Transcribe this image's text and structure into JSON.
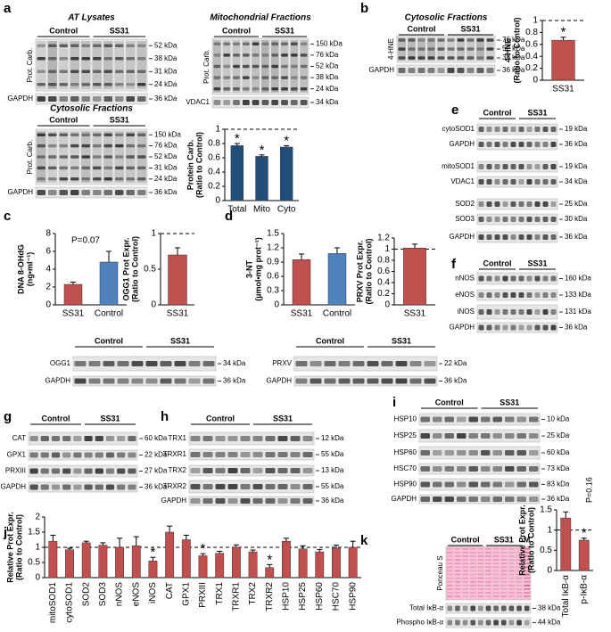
{
  "panel_labels": [
    "a",
    "b",
    "c",
    "d",
    "e",
    "f",
    "g",
    "h",
    "i",
    "j",
    "k"
  ],
  "blots": [
    {
      "title": "AT Lysates",
      "groups": [
        "Control",
        "SS31"
      ],
      "rows": [
        {
          "label": "Prot. Carb.",
          "markers": [
            "52 kDa",
            "38 kDa",
            "31 kDa",
            "24 kDa"
          ]
        },
        {
          "label": "GAPDH",
          "markers": [
            "36 kDa"
          ]
        }
      ]
    },
    {
      "title": "Mitochondrial Fractions",
      "groups": [
        "Control",
        "SS31"
      ],
      "rows": [
        {
          "label": "Prot. Carb.",
          "markers": [
            "150 kDa",
            "76 kDa",
            "52 kDa",
            "38 kDa",
            "24 kDa"
          ]
        },
        {
          "label": "VDAC1",
          "markers": [
            "34 kDa"
          ]
        }
      ]
    },
    {
      "title": "Cytosolic Fractions",
      "groups": [
        "Control",
        "SS31"
      ],
      "rows": [
        {
          "label": "Prot. Carb.",
          "markers": [
            "150 kDa",
            "76 kDa",
            "52 kDa",
            "31 kDa",
            "24 kDa"
          ]
        },
        {
          "label": "GAPDH",
          "markers": [
            "36 kDa"
          ]
        }
      ]
    },
    {
      "title": "Cytosolic Fractions",
      "groups": [
        "Control",
        "SS31"
      ],
      "rows": [
        {
          "label": "4-HNE",
          "markers": [
            "76 kDa",
            "52 kDa",
            "38 kDa"
          ]
        },
        {
          "label": "GAPDH",
          "markers": [
            "36 kDa"
          ]
        }
      ]
    },
    {
      "groups": [
        "Control",
        "SS31"
      ],
      "rows": [
        {
          "label": "cytoSOD1",
          "markers": [
            "19 kDa"
          ]
        },
        {
          "label": "GAPDH",
          "markers": [
            "36 kDa"
          ]
        },
        {
          "label": "mitoSOD1",
          "markers": [
            "19 kDa"
          ]
        },
        {
          "label": "VDAC1",
          "markers": [
            "34 kDa"
          ]
        },
        {
          "label": "SOD2",
          "markers": [
            "25 kDa"
          ]
        },
        {
          "label": "SOD3",
          "markers": [
            "30 kDa"
          ]
        },
        {
          "label": "GAPDH",
          "markers": [
            "36 kDa"
          ]
        }
      ]
    },
    {
      "groups": [
        "Control",
        "SS31"
      ],
      "rows": [
        {
          "label": "nNOS",
          "markers": [
            "160 kDa"
          ]
        },
        {
          "label": "eNOS",
          "markers": [
            "133 kDa"
          ]
        },
        {
          "label": "iNOS",
          "markers": [
            "131 kDa"
          ]
        },
        {
          "label": "GAPDH",
          "markers": [
            "36 kDa"
          ]
        }
      ]
    },
    {
      "groups": [
        "Control",
        "SS31"
      ],
      "rows": [
        {
          "label": "OGG1",
          "markers": [
            "34 kDa"
          ]
        },
        {
          "label": "GAPDH",
          "markers": [
            "36 kDa"
          ]
        }
      ]
    },
    {
      "groups": [
        "Control",
        "SS31"
      ],
      "rows": [
        {
          "label": "PRXV",
          "markers": [
            "22 kDa"
          ]
        },
        {
          "label": "GAPDH",
          "markers": [
            "36 kDa"
          ]
        }
      ]
    },
    {
      "groups": [
        "Control",
        "SS31"
      ],
      "rows": [
        {
          "label": "CAT",
          "markers": [
            "60 kDa"
          ]
        },
        {
          "label": "GPX1",
          "markers": [
            "22 kDa"
          ]
        },
        {
          "label": "PRXIII",
          "markers": [
            "27 kDa"
          ]
        },
        {
          "label": "GAPDH",
          "markers": [
            "36 kDa"
          ]
        }
      ]
    },
    {
      "groups": [
        "Control",
        "SS31"
      ],
      "rows": [
        {
          "label": "TRX1",
          "markers": [
            "12 kDa"
          ]
        },
        {
          "label": "TRXR1",
          "markers": [
            "55 kDa"
          ]
        },
        {
          "label": "TRX2",
          "markers": [
            "13 kDa"
          ]
        },
        {
          "label": "TRXR2",
          "markers": [
            "55 kDa"
          ]
        },
        {
          "label": "GAPDH",
          "markers": [
            "36 kDa"
          ]
        }
      ]
    },
    {
      "groups": [
        "Control",
        "SS31"
      ],
      "rows": [
        {
          "label": "HSP10",
          "markers": [
            "10 kDa"
          ]
        },
        {
          "label": "HSP25",
          "markers": [
            "25 kDa"
          ]
        },
        {
          "label": "HSP60",
          "markers": [
            "60 kDa"
          ]
        },
        {
          "label": "HSC70",
          "markers": [
            "73 kDa"
          ]
        },
        {
          "label": "HSP90",
          "markers": [
            "83 kDa"
          ]
        },
        {
          "label": "GAPDH",
          "markers": [
            "36 kDa"
          ]
        }
      ]
    },
    {
      "groups": [
        "Control",
        "SS31",
        "M"
      ],
      "rows": [
        {
          "label": "Ponceau S",
          "markers": []
        },
        {
          "label": "Total IκB-α",
          "markers": [
            "38 kDa"
          ]
        },
        {
          "label": "Phospho IκB-α",
          "markers": [
            "44 kDa"
          ]
        }
      ]
    }
  ],
  "chart_data": [
    {
      "type": "bar",
      "ylabel": [
        "Protein Carb.",
        "(Ratio to Control)"
      ],
      "categories": [
        "Total",
        "Mito",
        "Cyto"
      ],
      "values": [
        0.77,
        0.62,
        0.75
      ],
      "errors": [
        0.03,
        0.02,
        0.02
      ],
      "colors": [
        "#1f4e79",
        "#1f4e79",
        "#1f4e79"
      ],
      "ylim": [
        0,
        1
      ],
      "yticks": [
        0,
        0.2,
        0.4,
        0.6,
        0.8,
        1
      ],
      "reference_line": 1,
      "annotations": [
        {
          "text": "*",
          "at": "Total"
        },
        {
          "text": "*",
          "at": "Mito"
        },
        {
          "text": "*",
          "at": "Cyto"
        }
      ]
    },
    {
      "type": "bar",
      "ylabel": [
        "4-HNE",
        "(Ratio to Control)"
      ],
      "categories": [
        "SS31"
      ],
      "values": [
        0.67
      ],
      "errors": [
        0.05
      ],
      "colors": [
        "#c0504d"
      ],
      "ylim": [
        0,
        1
      ],
      "yticks": [
        0,
        0.2,
        0.4,
        0.6,
        0.8,
        1
      ],
      "reference_line": 1,
      "annotations": [
        {
          "text": "*",
          "at": "SS31"
        }
      ]
    },
    {
      "type": "bar",
      "ylabel": [
        "DNA 8-OHdG",
        "(ng•ml⁻¹)"
      ],
      "categories": [
        "SS31",
        "Control"
      ],
      "values": [
        2.3,
        4.8
      ],
      "errors": [
        0.25,
        1.2
      ],
      "colors": [
        "#c0504d",
        "#4f81bd"
      ],
      "ylim": [
        0,
        8
      ],
      "yticks": [
        0,
        2,
        4,
        6,
        8
      ],
      "annotations": [
        {
          "text": "P=0.07",
          "at": "SS31"
        }
      ]
    },
    {
      "type": "bar",
      "ylabel": [
        "OGG1 Prot Expr.",
        "(Ratio to Control)"
      ],
      "categories": [
        "SS31"
      ],
      "values": [
        0.7
      ],
      "errors": [
        0.1
      ],
      "colors": [
        "#c0504d"
      ],
      "ylim": [
        0,
        1
      ],
      "yticks": [
        0,
        0.5,
        1
      ],
      "reference_line": 1
    },
    {
      "type": "bar",
      "ylabel": [
        "3-NT",
        "(µmol•mg prot⁻¹)"
      ],
      "categories": [
        "SS31",
        "Control"
      ],
      "values": [
        0.95,
        1.08
      ],
      "errors": [
        0.12,
        0.12
      ],
      "colors": [
        "#c0504d",
        "#4f81bd"
      ],
      "ylim": [
        0,
        1.5
      ],
      "yticks": [
        0,
        0.3,
        0.6,
        0.9,
        1.2,
        1.5
      ]
    },
    {
      "type": "bar",
      "ylabel": [
        "PRXV Prot Expr.",
        "(Ratio to Control)"
      ],
      "categories": [
        "SS31"
      ],
      "values": [
        1.02
      ],
      "errors": [
        0.07
      ],
      "colors": [
        "#c0504d"
      ],
      "ylim": [
        0,
        1.2
      ],
      "yticks": [
        0,
        0.2,
        0.4,
        0.6,
        0.8,
        1,
        1.2
      ],
      "reference_line": 1
    },
    {
      "type": "bar",
      "ylabel": [
        "Relative Prot Expr.",
        "(Ratio to Control)"
      ],
      "categories": [
        "mitoSOD1",
        "cytoSOD1",
        "SOD2",
        "SOD3",
        "nNOS",
        "eNOS",
        "iNOS",
        "CAT",
        "GPX1",
        "PRXIII",
        "TRX1",
        "TRXR1",
        "TRX2",
        "TRXR2",
        "HSP10",
        "HSP25",
        "HSP60",
        "HSC70",
        "HSP90"
      ],
      "values": [
        1.2,
        0.92,
        1.15,
        1.07,
        1.0,
        1.05,
        0.55,
        1.5,
        1.25,
        0.72,
        0.8,
        1.0,
        0.85,
        0.33,
        1.2,
        0.95,
        0.85,
        0.97,
        1.0
      ],
      "errors": [
        0.2,
        0.05,
        0.05,
        0.08,
        0.3,
        0.3,
        0.12,
        0.2,
        0.15,
        0.07,
        0.07,
        0.08,
        0.06,
        0.1,
        0.1,
        0.1,
        0.08,
        0.1,
        0.2
      ],
      "colors": [
        "#c0504d",
        "#c0504d",
        "#c0504d",
        "#c0504d",
        "#c0504d",
        "#c0504d",
        "#c0504d",
        "#c0504d",
        "#c0504d",
        "#c0504d",
        "#c0504d",
        "#c0504d",
        "#c0504d",
        "#c0504d",
        "#c0504d",
        "#c0504d",
        "#c0504d",
        "#c0504d",
        "#c0504d"
      ],
      "ylim": [
        0,
        2
      ],
      "yticks": [
        0,
        0.5,
        1,
        1.5,
        2
      ],
      "reference_line": 1,
      "annotations": [
        {
          "text": "*",
          "at": "iNOS"
        },
        {
          "text": "*",
          "at": "PRXIII"
        },
        {
          "text": "*",
          "at": "TRXR2"
        }
      ]
    },
    {
      "type": "bar",
      "ylabel": [
        "Relative Prot Expr.",
        "(Ratio to Control)"
      ],
      "categories": [
        "Total IκB-α",
        "p-IκB-α"
      ],
      "values": [
        1.3,
        0.75
      ],
      "errors": [
        0.15,
        0.05
      ],
      "colors": [
        "#c0504d",
        "#c0504d"
      ],
      "ylim": [
        0,
        1.5
      ],
      "yticks": [
        0,
        0.5,
        1,
        1.5
      ],
      "reference_line": 1,
      "annotations": [
        {
          "text": "P=0.16",
          "at": "Total IκB-α"
        },
        {
          "text": "*",
          "at": "p-IκB-α"
        }
      ]
    }
  ]
}
